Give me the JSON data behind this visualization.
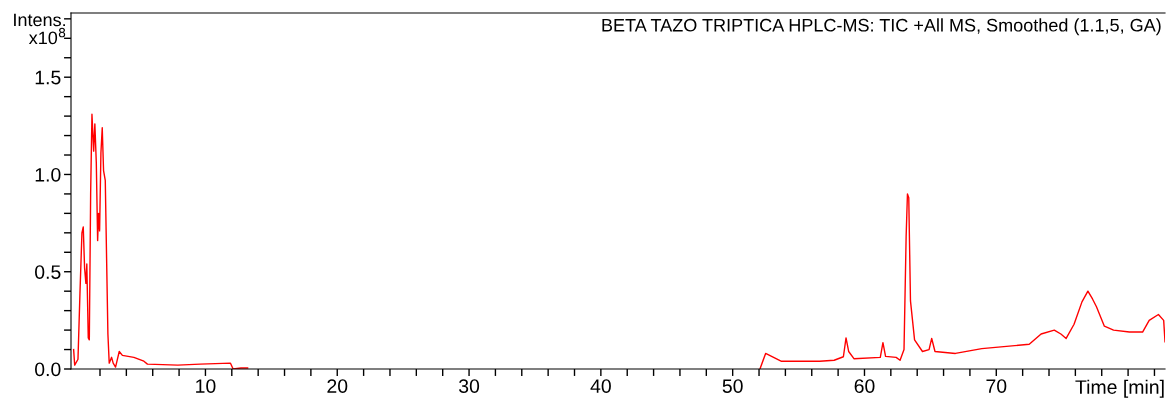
{
  "chart_data": {
    "type": "line",
    "title": "BETA TAZO TRIPTICA HPLC-MS: TIC +All MS, Smoothed (1.1,5, GA)",
    "xlabel": "Time [min]",
    "ylabel": "Intens.\nx10$^{8}$",
    "series": [
      {
        "color": "#ff0000",
        "x": [
          0.0,
          0.08,
          0.33,
          0.48,
          0.63,
          0.73,
          0.83,
          0.93,
          1.0,
          1.11,
          1.19,
          1.29,
          1.39,
          1.52,
          1.61,
          1.72,
          1.82,
          1.89,
          1.97,
          2.07,
          2.17,
          2.27,
          2.4,
          2.5,
          2.6,
          2.7,
          2.88,
          3.0,
          3.18,
          3.46,
          3.7,
          4.57,
          5.33,
          5.6,
          7.9,
          9.6,
          11.9,
          12.1,
          12.7,
          13.2,
          13.3,
          52.07,
          52.5,
          53.67,
          53.95,
          56.6,
          57.7,
          58.4,
          58.6,
          58.8,
          59.2,
          61.2,
          61.4,
          61.6,
          62.4,
          62.7,
          63.0,
          63.16,
          63.26,
          63.36,
          63.49,
          63.8,
          64.4,
          64.9,
          65.1,
          65.35,
          66.9,
          68.9,
          71.4,
          72.5,
          73.4,
          74.4,
          74.9,
          75.3,
          75.9,
          76.5,
          76.95,
          77.3,
          77.6,
          78.2,
          78.9,
          80.1,
          81.1,
          81.6,
          82.3,
          82.7,
          82.8
        ],
        "values": [
          0.1,
          0.02,
          0.05,
          0.39,
          0.7,
          0.73,
          0.52,
          0.44,
          0.54,
          0.16,
          0.15,
          0.9,
          1.31,
          1.12,
          1.26,
          1.06,
          0.66,
          0.8,
          0.71,
          1.11,
          1.24,
          1.02,
          0.97,
          0.57,
          0.18,
          0.03,
          0.06,
          0.03,
          0.01,
          0.09,
          0.07,
          0.06,
          0.04,
          0.025,
          0.02,
          0.025,
          0.03,
          0.0,
          0.005,
          0.005,
          null,
          0.0,
          0.08,
          0.04,
          0.04,
          0.04,
          0.045,
          0.063,
          0.16,
          0.09,
          0.053,
          0.06,
          0.135,
          0.065,
          0.06,
          0.045,
          0.1,
          0.68,
          0.9,
          0.88,
          0.35,
          0.15,
          0.09,
          0.1,
          0.157,
          0.09,
          0.08,
          0.105,
          0.12,
          0.127,
          0.18,
          0.2,
          0.18,
          0.157,
          0.23,
          0.345,
          0.4,
          0.36,
          0.32,
          0.22,
          0.2,
          0.19,
          0.19,
          0.25,
          0.28,
          0.25,
          0.14
        ]
      }
    ],
    "xlim": [
      -0.2,
      82.8
    ],
    "ylim": [
      0,
      1.83
    ],
    "xticks": [
      {
        "value": 2,
        "label": null
      },
      {
        "value": 4,
        "label": null
      },
      {
        "value": 6,
        "label": null
      },
      {
        "value": 8,
        "label": null
      },
      10,
      {
        "value": 12,
        "label": null
      },
      {
        "value": 14,
        "label": null
      },
      {
        "value": 16,
        "label": null
      },
      {
        "value": 18,
        "label": null
      },
      20,
      {
        "value": 22,
        "label": null
      },
      {
        "value": 24,
        "label": null
      },
      {
        "value": 26,
        "label": null
      },
      {
        "value": 28,
        "label": null
      },
      30,
      {
        "value": 32,
        "label": null
      },
      {
        "value": 34,
        "label": null
      },
      {
        "value": 36,
        "label": null
      },
      {
        "value": 38,
        "label": null
      },
      40,
      {
        "value": 42,
        "label": null
      },
      {
        "value": 44,
        "label": null
      },
      {
        "value": 46,
        "label": null
      },
      {
        "value": 48,
        "label": null
      },
      50,
      {
        "value": 52,
        "label": null
      },
      {
        "value": 54,
        "label": null
      },
      {
        "value": 56,
        "label": null
      },
      {
        "value": 58,
        "label": null
      },
      60,
      {
        "value": 62,
        "label": null
      },
      {
        "value": 64,
        "label": null
      },
      {
        "value": 66,
        "label": null
      },
      {
        "value": 68,
        "label": null
      },
      70,
      {
        "value": 72,
        "label": null
      },
      {
        "value": 74,
        "label": null
      },
      {
        "value": 76,
        "label": null
      },
      {
        "value": 78,
        "label": null
      },
      {
        "value": 80,
        "label": null
      },
      {
        "value": 82,
        "label": null
      }
    ],
    "yticks": [
      {
        "value": 0,
        "label": "0.0"
      },
      {
        "value": 0.1,
        "label": null
      },
      {
        "value": 0.2,
        "label": null
      },
      {
        "value": 0.3,
        "label": null
      },
      {
        "value": 0.4,
        "label": null
      },
      0.5,
      {
        "value": 0.6,
        "label": null
      },
      {
        "value": 0.7,
        "label": null
      },
      {
        "value": 0.8,
        "label": null
      },
      {
        "value": 0.9,
        "label": null
      },
      {
        "value": 1,
        "label": "1.0"
      },
      {
        "value": 1.1,
        "label": null
      },
      {
        "value": 1.2,
        "label": null
      },
      {
        "value": 1.3,
        "label": null
      },
      {
        "value": 1.4,
        "label": null
      },
      1.5,
      {
        "value": 1.6,
        "label": null
      },
      {
        "value": 1.7,
        "label": null
      },
      {
        "value": 1.8,
        "label": null
      }
    ],
    "grid": false,
    "marker": "none",
    "line_style": "solid"
  }
}
